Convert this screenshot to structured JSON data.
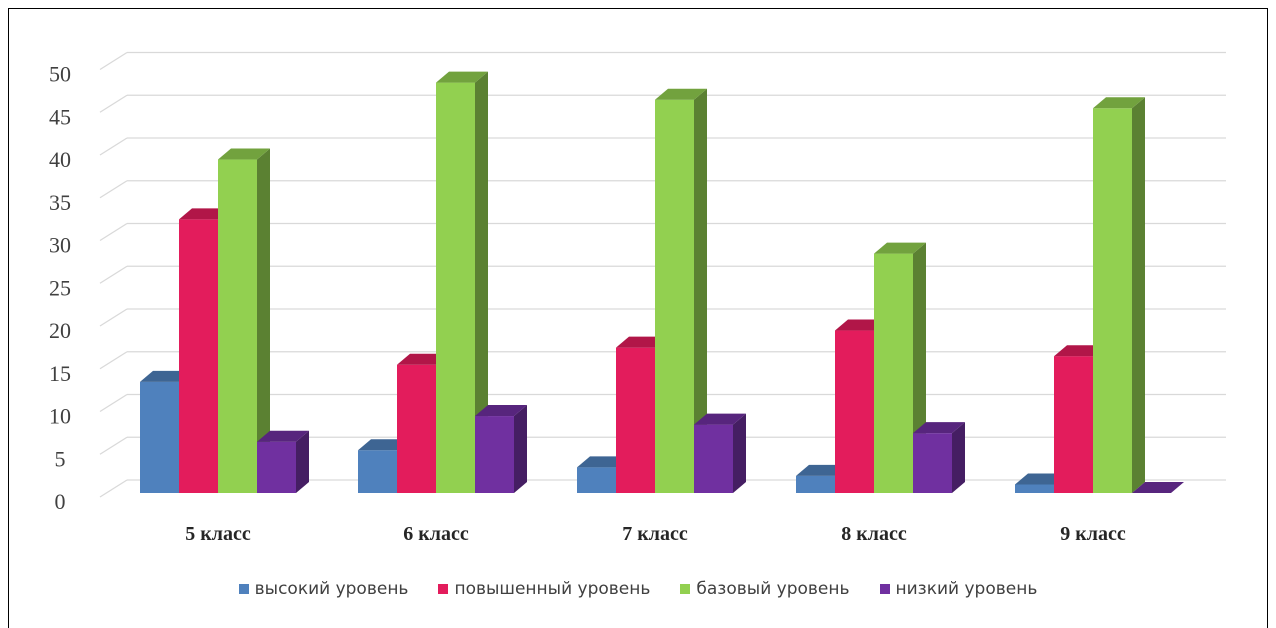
{
  "chart_data": {
    "type": "bar",
    "style": "3d-clustered-column",
    "categories": [
      "5 класс",
      "6 класс",
      "7 класс",
      "8 класс",
      "9 класс"
    ],
    "series": [
      {
        "name": "высокий уровень",
        "color": "#4f81bd",
        "values": [
          13,
          5,
          3,
          2,
          1
        ]
      },
      {
        "name": "повышенный уровень",
        "color": "#e31c5c",
        "values": [
          32,
          15,
          17,
          19,
          16
        ]
      },
      {
        "name": "базовый уровень",
        "color": "#92d050",
        "values": [
          39,
          48,
          46,
          28,
          45
        ]
      },
      {
        "name": "низкий уровень",
        "color": "#7030a0",
        "values": [
          6,
          9,
          8,
          7,
          0
        ]
      }
    ],
    "yticks": [
      "0",
      "5",
      "10",
      "15",
      "20",
      "25",
      "30",
      "35",
      "40",
      "45",
      "50"
    ],
    "ylim": [
      0,
      50
    ],
    "grid": true,
    "legend_position": "bottom"
  }
}
